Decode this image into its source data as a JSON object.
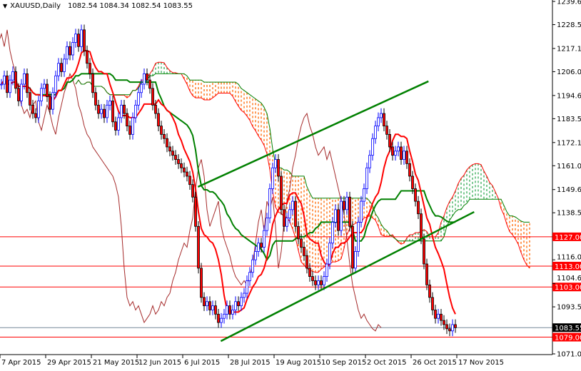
{
  "header": {
    "symbol": "XAUUSD,Daily",
    "ohlc": "1082.54 1084.34 1082.54 1083.55"
  },
  "chart_data": {
    "type": "candlestick",
    "title": "XAUUSD,Daily",
    "indicators": [
      "Ichimoku Kinko Hyo"
    ],
    "ylim": [
      1071.0,
      1239.6
    ],
    "y_ticks": [
      "1239.60",
      "1228.50",
      "1217.10",
      "1206.00",
      "1194.60",
      "1183.50",
      "1172.10",
      "1161.00",
      "1149.60",
      "1138.50",
      "1116.00",
      "1104.60",
      "1093.50",
      "1071.00"
    ],
    "x_ticks": [
      "7 Apr 2015",
      "29 Apr 2015",
      "21 May 2015",
      "12 Jun 2015",
      "6 Jul 2015",
      "28 Jul 2015",
      "19 Aug 2015",
      "10 Sep 2015",
      "2 Oct 2015",
      "26 Oct 2015",
      "17 Nov 2015"
    ],
    "closes": [
      1200,
      1204,
      1196,
      1202,
      1206,
      1198,
      1192,
      1200,
      1205,
      1196,
      1190,
      1186,
      1184,
      1192,
      1198,
      1200,
      1194,
      1188,
      1196,
      1204,
      1210,
      1206,
      1212,
      1218,
      1214,
      1220,
      1224,
      1218,
      1226,
      1216,
      1210,
      1205,
      1196,
      1190,
      1186,
      1188,
      1184,
      1190,
      1192,
      1182,
      1178,
      1184,
      1190,
      1186,
      1180,
      1176,
      1184,
      1190,
      1196,
      1200,
      1205,
      1202,
      1198,
      1190,
      1186,
      1180,
      1176,
      1174,
      1170,
      1168,
      1166,
      1164,
      1162,
      1160,
      1158,
      1156,
      1152,
      1146,
      1132,
      1112,
      1098,
      1094,
      1096,
      1092,
      1094,
      1090,
      1086,
      1088,
      1090,
      1094,
      1090,
      1092,
      1096,
      1094,
      1098,
      1100,
      1106,
      1110,
      1116,
      1120,
      1124,
      1122,
      1130,
      1136,
      1150,
      1160,
      1164,
      1156,
      1140,
      1132,
      1136,
      1140,
      1144,
      1132,
      1126,
      1122,
      1118,
      1112,
      1108,
      1106,
      1104,
      1106,
      1104,
      1108,
      1114,
      1124,
      1134,
      1140,
      1130,
      1144,
      1140,
      1146,
      1132,
      1112,
      1120,
      1134,
      1144,
      1150,
      1160,
      1166,
      1174,
      1180,
      1184,
      1186,
      1180,
      1176,
      1170,
      1166,
      1168,
      1170,
      1164,
      1168,
      1162,
      1156,
      1150,
      1144,
      1138,
      1126,
      1114,
      1104,
      1098,
      1092,
      1088,
      1090,
      1087,
      1085,
      1083,
      1082,
      1085,
      1083.55
    ],
    "last_price": 1083.55,
    "horizontal_levels": [
      1127.0,
      1113.0,
      1103.0,
      1079.0
    ],
    "trendlines": [
      {
        "from": [
          "13 Jul 2015",
          1150.9
        ],
        "to": [
          "3 Nov 2015",
          1201.4
        ]
      },
      {
        "from": [
          "24 Jul 2015",
          1077.1
        ],
        "to": [
          "25 Nov 2015",
          1138.9
        ]
      }
    ],
    "colors": {
      "bull_candle": "#0000ff",
      "bear_candle": "#ff0000",
      "tenkan": "#ff0000",
      "kijun": "#008000",
      "chikou": "#a52a2a",
      "kumo_bearish": "#ff6600",
      "kumo_bullish": "#33aa55",
      "levels": "#ff0000",
      "trendlines": "#008000",
      "last_price_line": "#778899"
    }
  }
}
